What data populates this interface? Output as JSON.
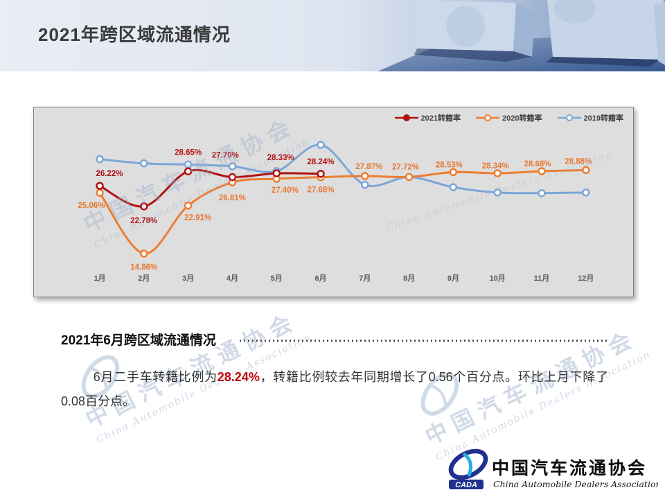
{
  "slide": {
    "title": "2021年跨区域流通情况",
    "section_heading": "2021年6月跨区域流通情况",
    "paragraph": {
      "prefix": "6月二手车转籍比例为",
      "highlight": "28.24%",
      "suffix": "，转籍比例较去年同期增长了0.56个百分点。环比上月下降了0.08百分点。"
    },
    "colors": {
      "highlight_red": "#c00000",
      "panel_background": "#dedede",
      "header_blue": "#46669d"
    }
  },
  "watermark": {
    "text_cn": "中国汽车流通协会",
    "text_en": "China Automobile Dealers Association"
  },
  "logo": {
    "badge": "CADA",
    "org_name_cn": "中国汽车流通协会",
    "org_name_en": "China Automobile Dealers Association"
  },
  "chart_data": {
    "type": "line",
    "title": "",
    "xlabel": "",
    "ylabel": "",
    "grid": false,
    "legend_position": "top-right",
    "ylim": [
      13.5,
      35
    ],
    "categories": [
      "1月",
      "2月",
      "3月",
      "4月",
      "5月",
      "6月",
      "7月",
      "8月",
      "9月",
      "10月",
      "11月",
      "12月"
    ],
    "series": [
      {
        "name": "2019转籍率",
        "color": "#7ba6d7",
        "marker_fill": "open",
        "show_labels": false,
        "values": [
          30.7,
          30.0,
          29.8,
          29.5,
          28.7,
          33.1,
          26.4,
          27.7,
          26.0,
          25.1,
          25.0,
          25.1
        ]
      },
      {
        "name": "2020转籍率",
        "color": "#ed7d31",
        "label_color": "#e8772e",
        "marker_fill": "open",
        "show_labels": true,
        "values": [
          25.06,
          14.86,
          22.91,
          26.81,
          27.4,
          27.68,
          27.87,
          27.72,
          28.53,
          28.34,
          28.68,
          28.88
        ],
        "label_offsets": [
          [
            -12,
            22
          ],
          [
            0,
            23
          ],
          [
            14,
            21
          ],
          [
            0,
            26
          ],
          [
            12,
            20
          ],
          [
            0,
            22
          ],
          [
            6,
            -10
          ],
          [
            -5,
            -11
          ],
          [
            -6,
            -7
          ],
          [
            -3,
            -7
          ],
          [
            -6,
            -7
          ],
          [
            -11,
            -9
          ]
        ]
      },
      {
        "name": "2021转籍率",
        "color": "#b01111",
        "label_color": "#b30d0d",
        "marker_fill": "solid",
        "show_labels": true,
        "values": [
          26.22,
          22.78,
          28.65,
          27.7,
          28.33,
          28.24
        ],
        "label_offsets": [
          [
            14,
            -14
          ],
          [
            0,
            24
          ],
          [
            0,
            -24
          ],
          [
            -10,
            -28
          ],
          [
            6,
            -19
          ],
          [
            0,
            -14
          ]
        ]
      }
    ],
    "legend_order": [
      "2021转籍率",
      "2020转籍率",
      "2019转籍率"
    ],
    "axis_label_color": "#595959"
  }
}
